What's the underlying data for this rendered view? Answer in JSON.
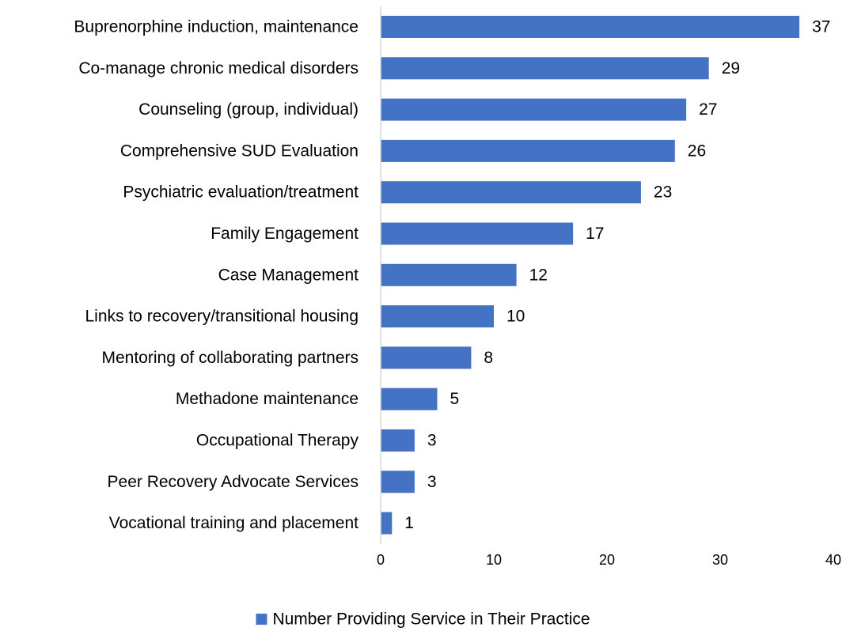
{
  "chart_data": {
    "type": "bar",
    "orientation": "horizontal",
    "categories": [
      "Buprenorphine induction, maintenance",
      "Co-manage chronic medical disorders",
      "Counseling (group, individual)",
      "Comprehensive SUD Evaluation",
      "Psychiatric evaluation/treatment",
      "Family Engagement",
      "Case Management",
      "Links to recovery/transitional housing",
      "Mentoring of collaborating partners",
      "Methadone maintenance",
      "Occupational Therapy",
      "Peer Recovery Advocate Services",
      "Vocational training and placement"
    ],
    "series": [
      {
        "name": "Number Providing Service in Their Practice",
        "values": [
          37,
          29,
          27,
          26,
          23,
          17,
          12,
          10,
          8,
          5,
          3,
          3,
          1
        ],
        "color": "#4472C4"
      }
    ],
    "xlim": [
      0,
      40
    ],
    "xticks": [
      "0",
      "10",
      "20",
      "30",
      "40"
    ],
    "grid": false,
    "data_labels": true,
    "legend": {
      "position": "bottom"
    }
  }
}
